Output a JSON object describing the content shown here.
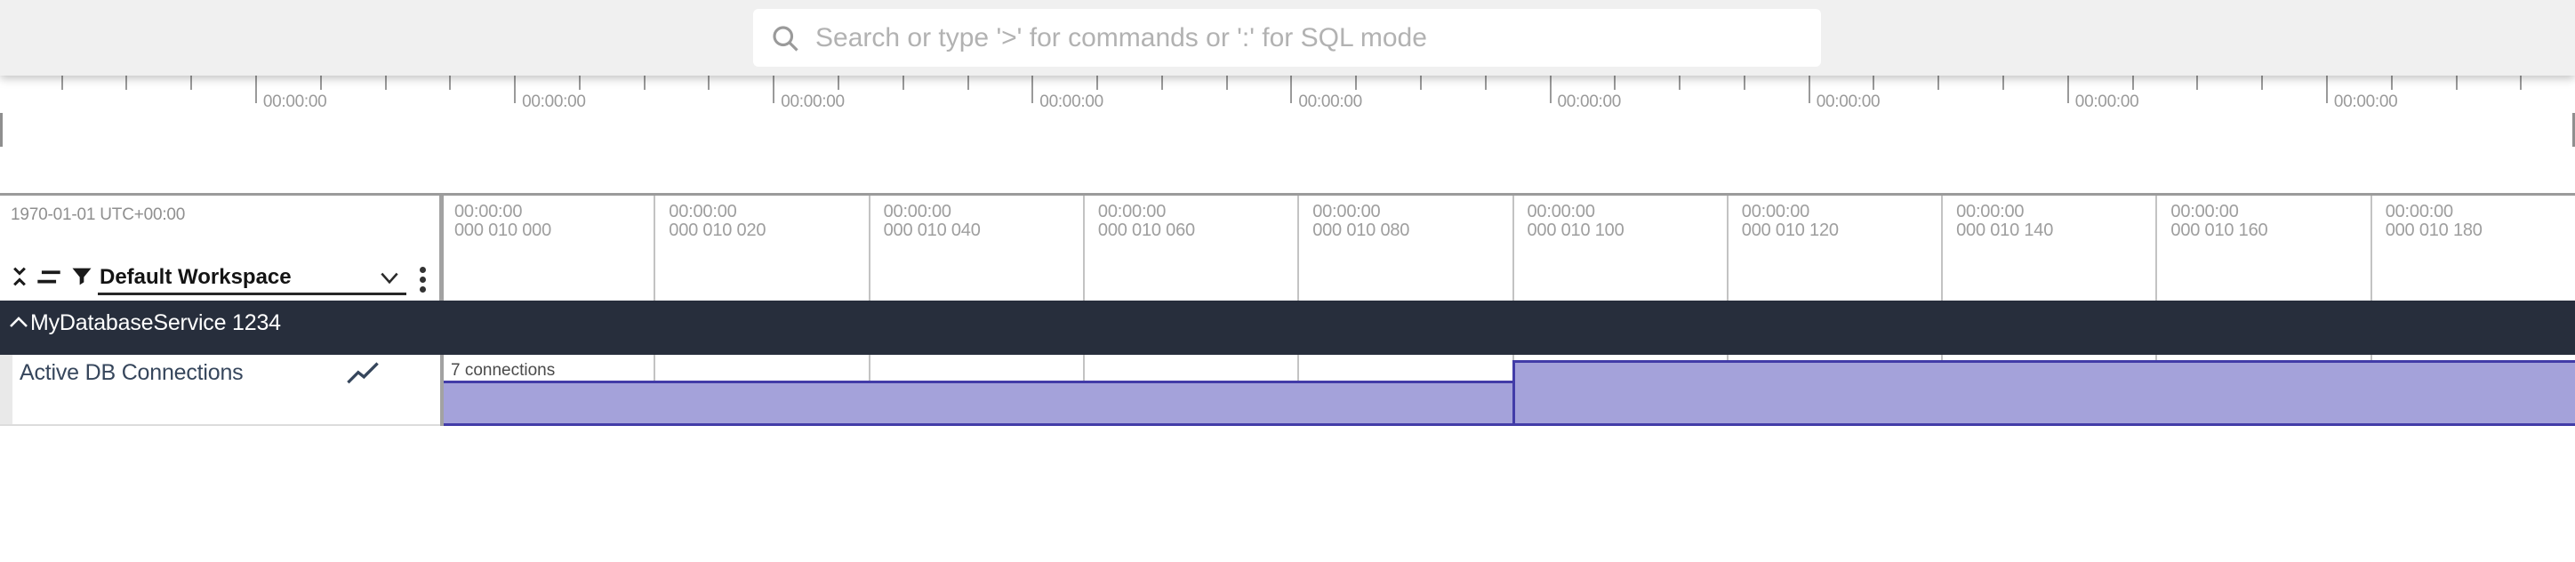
{
  "omnibox": {
    "placeholder": "Search or type '>' for commands or ':' for SQL mode",
    "search_icon": "magnifier-icon"
  },
  "overview": {
    "major_tick_labels": [
      "00:00:00",
      "00:00:00",
      "00:00:00",
      "00:00:00",
      "00:00:00",
      "00:00:00",
      "00:00:00",
      "00:00:00",
      "00:00:00"
    ]
  },
  "timeline": {
    "date_label": "1970-01-01 UTC+00:00",
    "columns": [
      {
        "time": "00:00:00",
        "offset": "000 010 000"
      },
      {
        "time": "00:00:00",
        "offset": "000 010 020"
      },
      {
        "time": "00:00:00",
        "offset": "000 010 040"
      },
      {
        "time": "00:00:00",
        "offset": "000 010 060"
      },
      {
        "time": "00:00:00",
        "offset": "000 010 080"
      },
      {
        "time": "00:00:00",
        "offset": "000 010 100"
      },
      {
        "time": "00:00:00",
        "offset": "000 010 120"
      },
      {
        "time": "00:00:00",
        "offset": "000 010 140"
      },
      {
        "time": "00:00:00",
        "offset": "000 010 160"
      },
      {
        "time": "00:00:00",
        "offset": "000 010 180"
      }
    ]
  },
  "workspace": {
    "selected": "Default Workspace",
    "icons": [
      "collapse-all-icon",
      "flatten-tracks-icon",
      "filter-icon"
    ],
    "menu_icon": "kebab-menu-icon"
  },
  "tracks": {
    "group": {
      "label": "MyDatabaseService 1234",
      "state_icon": "chevron-up-icon",
      "header_bg": "#272e3c"
    },
    "counter": {
      "title": "Active DB Connections",
      "type_icon": "show-chart-icon",
      "value_label": "7 connections",
      "fill_color": "#a4a2da",
      "line_color": "#423ca8"
    }
  },
  "chart_data": {
    "type": "area",
    "title": "Active DB Connections",
    "ylabel": "connections",
    "x_tick_labels": [
      "000 010 000",
      "000 010 020",
      "000 010 040",
      "000 010 060",
      "000 010 080",
      "000 010 100",
      "000 010 120",
      "000 010 140",
      "000 010 160",
      "000 010 180"
    ],
    "series": [
      {
        "name": "Active DB Connections",
        "step_points": [
          {
            "x_label": "000 010 000",
            "value": 7
          },
          {
            "x_label": "000 010 100",
            "value": 10
          }
        ]
      }
    ],
    "value_label_shown": "7 connections",
    "legend_position": "none",
    "grid": true
  }
}
